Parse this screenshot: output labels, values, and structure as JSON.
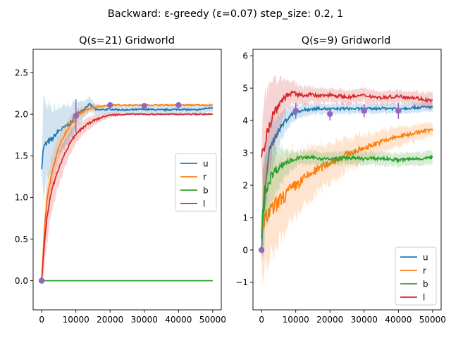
{
  "figure": {
    "suptitle": "Backward: ε-greedy (ε=0.07) step_size: 0.2, 1"
  },
  "colors": {
    "u": "#1f77b4",
    "r": "#ff7f0e",
    "b": "#2ca02c",
    "l": "#d62728",
    "marker": "#9467bd"
  },
  "chart_data": [
    {
      "type": "line",
      "title": "Q(s=21) Gridworld",
      "xlim": [
        -2500,
        52500
      ],
      "ylim": [
        -0.35,
        2.78
      ],
      "xticks": [
        0,
        10000,
        20000,
        30000,
        40000,
        50000
      ],
      "xtick_labels": [
        "0",
        "10000",
        "20000",
        "30000",
        "40000",
        "50000"
      ],
      "yticks": [
        0.0,
        0.5,
        1.0,
        1.5,
        2.0,
        2.5
      ],
      "ytick_labels": [
        "0.0",
        "0.5",
        "1.0",
        "1.5",
        "2.0",
        "2.5"
      ],
      "legend": {
        "placement": "center-right",
        "entries": [
          "u",
          "r",
          "b",
          "l"
        ]
      },
      "series": [
        {
          "name": "u",
          "color": "#1f77b4",
          "x": [
            0,
            500,
            1500,
            3000,
            5000,
            7000,
            9000,
            10000,
            12000,
            14000,
            16000,
            20000,
            25000,
            30000,
            35000,
            40000,
            45000,
            50000
          ],
          "y": [
            1.35,
            1.6,
            1.65,
            1.7,
            1.8,
            1.85,
            1.92,
            2.0,
            2.05,
            2.12,
            2.05,
            2.06,
            2.05,
            2.06,
            2.05,
            2.06,
            2.05,
            2.08
          ],
          "band": [
            0.05,
            0.6,
            0.45,
            0.35,
            0.3,
            0.25,
            0.2,
            0.15,
            0.1,
            0.08,
            0.06,
            0.05,
            0.05,
            0.05,
            0.05,
            0.05,
            0.05,
            0.05
          ]
        },
        {
          "name": "r",
          "color": "#ff7f0e",
          "x": [
            0,
            500,
            1500,
            3000,
            5000,
            7000,
            9000,
            11000,
            13000,
            15000,
            18000,
            20000,
            25000,
            30000,
            35000,
            40000,
            45000,
            50000
          ],
          "y": [
            0.0,
            0.4,
            0.95,
            1.3,
            1.6,
            1.78,
            1.9,
            2.0,
            2.05,
            2.08,
            2.1,
            2.11,
            2.11,
            2.11,
            2.11,
            2.11,
            2.11,
            2.11
          ],
          "band": [
            0.0,
            0.3,
            0.25,
            0.2,
            0.15,
            0.12,
            0.1,
            0.08,
            0.05,
            0.04,
            0.02,
            0.01,
            0.01,
            0.01,
            0.01,
            0.01,
            0.01,
            0.01
          ]
        },
        {
          "name": "b",
          "color": "#2ca02c",
          "x": [
            0,
            50000
          ],
          "y": [
            0.0,
            0.0
          ],
          "band": [
            0.0,
            0.0
          ]
        },
        {
          "name": "l",
          "color": "#d62728",
          "x": [
            0,
            500,
            1500,
            3000,
            5000,
            7000,
            9000,
            11000,
            13000,
            15000,
            18000,
            20000,
            25000,
            30000,
            35000,
            40000,
            45000,
            50000
          ],
          "y": [
            0.0,
            0.3,
            0.75,
            1.1,
            1.35,
            1.55,
            1.7,
            1.8,
            1.87,
            1.92,
            1.97,
            1.99,
            2.0,
            2.0,
            2.0,
            2.0,
            2.0,
            2.0
          ],
          "band": [
            0.0,
            0.3,
            0.3,
            0.25,
            0.2,
            0.15,
            0.12,
            0.1,
            0.08,
            0.06,
            0.04,
            0.03,
            0.01,
            0.01,
            0.01,
            0.01,
            0.01,
            0.01
          ]
        }
      ],
      "markers": {
        "color": "#9467bd",
        "points": [
          {
            "x": 0,
            "y": 0.0,
            "err": 0.0
          },
          {
            "x": 10000,
            "y": 1.98,
            "err": 0.2
          },
          {
            "x": 20000,
            "y": 2.11,
            "err": 0.0
          },
          {
            "x": 30000,
            "y": 2.1,
            "err": 0.0
          },
          {
            "x": 40000,
            "y": 2.11,
            "err": 0.0
          }
        ]
      }
    },
    {
      "type": "line",
      "title": "Q(s=9) Gridworld",
      "xlim": [
        -2500,
        52500
      ],
      "ylim": [
        -1.85,
        6.2
      ],
      "xticks": [
        0,
        10000,
        20000,
        30000,
        40000,
        50000
      ],
      "xtick_labels": [
        "0",
        "10000",
        "20000",
        "30000",
        "40000",
        "50000"
      ],
      "yticks": [
        -1,
        0,
        1,
        2,
        3,
        4,
        5,
        6
      ],
      "ytick_labels": [
        "−1",
        "0",
        "1",
        "2",
        "3",
        "4",
        "5",
        "6"
      ],
      "legend": {
        "placement": "lower-right",
        "entries": [
          "u",
          "r",
          "b",
          "l"
        ]
      },
      "series": [
        {
          "name": "u",
          "color": "#1f77b4",
          "x": [
            0,
            300,
            1000,
            2000,
            3500,
            5000,
            7000,
            9000,
            11000,
            14000,
            17000,
            20000,
            25000,
            30000,
            35000,
            40000,
            45000,
            50000
          ],
          "y": [
            -0.1,
            0.8,
            2.0,
            2.9,
            3.4,
            3.7,
            4.0,
            4.2,
            4.3,
            4.35,
            4.38,
            4.35,
            4.37,
            4.35,
            4.38,
            4.37,
            4.4,
            4.42
          ],
          "band": [
            0.2,
            1.2,
            1.1,
            0.9,
            0.7,
            0.5,
            0.35,
            0.25,
            0.2,
            0.18,
            0.15,
            0.15,
            0.15,
            0.15,
            0.15,
            0.15,
            0.15,
            0.15
          ]
        },
        {
          "name": "r",
          "color": "#ff7f0e",
          "x": [
            0,
            300,
            1000,
            2000,
            3500,
            5000,
            7000,
            10000,
            15000,
            20000,
            25000,
            30000,
            35000,
            40000,
            45000,
            50000
          ],
          "y": [
            0.4,
            0.6,
            0.9,
            1.1,
            1.3,
            1.5,
            1.7,
            2.0,
            2.4,
            2.7,
            2.95,
            3.15,
            3.35,
            3.5,
            3.62,
            3.72
          ],
          "band": [
            0.8,
            1.8,
            1.6,
            1.5,
            1.4,
            1.3,
            1.2,
            1.0,
            0.8,
            0.6,
            0.5,
            0.4,
            0.35,
            0.3,
            0.25,
            0.2
          ]
        },
        {
          "name": "b",
          "color": "#2ca02c",
          "x": [
            0,
            300,
            1000,
            2000,
            3500,
            5000,
            7000,
            9000,
            11000,
            15000,
            20000,
            25000,
            30000,
            35000,
            40000,
            45000,
            50000
          ],
          "y": [
            0.3,
            1.0,
            1.7,
            2.1,
            2.4,
            2.55,
            2.7,
            2.78,
            2.85,
            2.85,
            2.8,
            2.85,
            2.82,
            2.83,
            2.78,
            2.82,
            2.85
          ],
          "band": [
            0.5,
            1.5,
            1.3,
            1.0,
            0.8,
            0.6,
            0.4,
            0.3,
            0.2,
            0.2,
            0.2,
            0.2,
            0.2,
            0.2,
            0.2,
            0.2,
            0.2
          ]
        },
        {
          "name": "l",
          "color": "#d62728",
          "x": [
            0,
            300,
            1000,
            2000,
            3500,
            5000,
            7000,
            9000,
            11000,
            14000,
            17000,
            20000,
            25000,
            30000,
            35000,
            40000,
            45000,
            50000
          ],
          "y": [
            2.8,
            3.0,
            3.4,
            3.8,
            4.2,
            4.5,
            4.75,
            4.85,
            4.78,
            4.8,
            4.75,
            4.8,
            4.72,
            4.78,
            4.7,
            4.75,
            4.7,
            4.6
          ],
          "band": [
            0.3,
            1.2,
            1.5,
            1.3,
            1.1,
            0.8,
            0.5,
            0.35,
            0.3,
            0.25,
            0.22,
            0.22,
            0.2,
            0.2,
            0.2,
            0.2,
            0.2,
            0.25
          ]
        }
      ],
      "markers": {
        "color": "#9467bd",
        "points": [
          {
            "x": 0,
            "y": 0.0,
            "err": 0.0
          },
          {
            "x": 10000,
            "y": 4.3,
            "err": 0.25
          },
          {
            "x": 20000,
            "y": 4.2,
            "err": 0.2
          },
          {
            "x": 30000,
            "y": 4.3,
            "err": 0.2
          },
          {
            "x": 40000,
            "y": 4.3,
            "err": 0.25
          }
        ]
      }
    }
  ]
}
